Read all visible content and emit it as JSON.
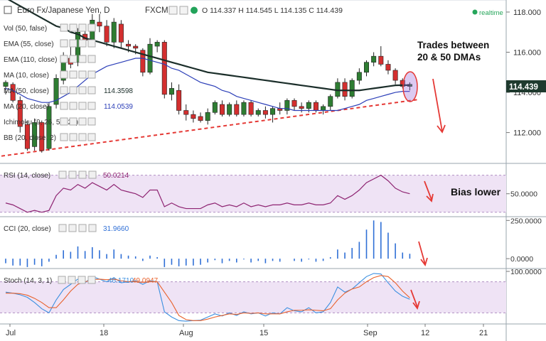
{
  "header": {
    "symbol": "Euro Fx/Japanese Yen, D",
    "source": "FXCM",
    "ohlc": "O 114.337  H 114.545  L 114.135  C 114.439",
    "realtime": "realtime"
  },
  "indicators": [
    {
      "label": "Vol (50, false)",
      "value": ""
    },
    {
      "label": "EMA (55, close)",
      "value": ""
    },
    {
      "label": "EMA (110, close)",
      "value": ""
    },
    {
      "label": "MA (10, close)",
      "value": ""
    },
    {
      "label": "MA (50, close)",
      "value": "114.3598"
    },
    {
      "label": "MA (20, close)",
      "value": "114.0539"
    },
    {
      "label": "Ichimoku (9, 26, 52, 26)",
      "value": ""
    },
    {
      "label": "BB (20, close, 2)",
      "value": ""
    }
  ],
  "annotations": {
    "trades_line1": "Trades between",
    "trades_line2": "20 & 50 DMAs",
    "bias": "Bias lower"
  },
  "panels": {
    "rsi": {
      "label": "RSI (14, close)",
      "value": "50.0214"
    },
    "cci": {
      "label": "CCI (20, close)",
      "value": "31.9660"
    },
    "stoch": {
      "label": "Stoch (14, 3, 1)",
      "value1": "46.1710",
      "value2": "49.0947"
    }
  },
  "colors": {
    "up": "#2e7d32",
    "down": "#d32f2f",
    "ma50": "#1b2e2a",
    "ma20": "#2c3fb8",
    "trend": "#e53935",
    "rsi": "#8e2472",
    "cci": "#2f6fd6",
    "stochK": "#3b8fe0",
    "stochD": "#e8622d",
    "band": "#efe3f5",
    "price_tag": "#1f3a2e"
  },
  "chart_data": [
    {
      "type": "candlestick",
      "title": "Euro Fx/Japanese Yen, D",
      "ylim": [
        110.5,
        118.6
      ],
      "yticks": [
        112.0,
        114.0,
        116.0,
        118.0
      ],
      "ytick_labels": [
        "112.000",
        "114.000",
        "116.000",
        "118.000"
      ],
      "last_price": "114.439",
      "x_tick_labels": [
        "Jul",
        "18",
        "Aug",
        "15",
        "Sep",
        "12",
        "21"
      ],
      "candles": [
        [
          114.3,
          114.6,
          113.9,
          114.5
        ],
        [
          114.4,
          114.5,
          113.5,
          113.6
        ],
        [
          113.6,
          113.8,
          112.0,
          112.3
        ],
        [
          112.4,
          112.6,
          111.1,
          111.2
        ],
        [
          111.3,
          112.7,
          111.1,
          112.5
        ],
        [
          112.5,
          112.6,
          111.0,
          111.1
        ],
        [
          111.2,
          113.5,
          111.1,
          113.3
        ],
        [
          113.4,
          114.9,
          113.2,
          114.7
        ],
        [
          114.6,
          116.0,
          114.4,
          115.8
        ],
        [
          115.7,
          116.5,
          115.2,
          115.4
        ],
        [
          115.5,
          117.2,
          115.3,
          117.0
        ],
        [
          116.9,
          117.4,
          116.4,
          116.6
        ],
        [
          116.6,
          117.9,
          116.4,
          117.6
        ],
        [
          117.5,
          117.9,
          117.0,
          117.3
        ],
        [
          117.3,
          117.6,
          116.3,
          116.5
        ],
        [
          116.5,
          117.7,
          116.2,
          117.5
        ],
        [
          117.4,
          117.6,
          116.2,
          116.5
        ],
        [
          116.4,
          116.6,
          116.0,
          116.3
        ],
        [
          116.3,
          116.4,
          115.9,
          116.2
        ],
        [
          116.1,
          116.2,
          114.8,
          115.0
        ],
        [
          115.0,
          116.7,
          114.9,
          116.4
        ],
        [
          116.3,
          116.6,
          116.0,
          116.5
        ],
        [
          116.5,
          116.6,
          113.7,
          113.9
        ],
        [
          113.9,
          114.5,
          113.6,
          114.2
        ],
        [
          114.1,
          114.4,
          112.9,
          113.1
        ],
        [
          113.1,
          113.4,
          112.6,
          112.9
        ],
        [
          112.9,
          113.1,
          112.5,
          112.7
        ],
        [
          112.8,
          113.0,
          112.5,
          112.6
        ],
        [
          112.6,
          113.2,
          112.4,
          113.0
        ],
        [
          113.0,
          113.6,
          112.9,
          113.5
        ],
        [
          113.4,
          113.6,
          112.8,
          112.9
        ],
        [
          112.9,
          113.5,
          112.8,
          113.4
        ],
        [
          113.4,
          113.6,
          112.8,
          112.9
        ],
        [
          112.9,
          113.6,
          112.8,
          113.5
        ],
        [
          113.5,
          113.6,
          112.8,
          112.9
        ],
        [
          112.9,
          113.2,
          112.8,
          113.1
        ],
        [
          113.1,
          113.3,
          112.7,
          112.9
        ],
        [
          112.9,
          113.3,
          112.5,
          113.2
        ],
        [
          113.2,
          113.5,
          112.9,
          113.1
        ],
        [
          113.1,
          113.7,
          112.9,
          113.6
        ],
        [
          113.6,
          113.7,
          113.1,
          113.3
        ],
        [
          113.3,
          113.5,
          113.0,
          113.2
        ],
        [
          113.2,
          113.6,
          113.0,
          113.5
        ],
        [
          113.5,
          113.6,
          113.0,
          113.1
        ],
        [
          113.1,
          113.4,
          112.9,
          113.3
        ],
        [
          113.3,
          113.9,
          113.1,
          113.8
        ],
        [
          113.8,
          114.7,
          113.7,
          114.5
        ],
        [
          114.5,
          114.7,
          113.6,
          113.8
        ],
        [
          113.8,
          114.7,
          113.7,
          114.6
        ],
        [
          114.6,
          115.2,
          114.4,
          115.0
        ],
        [
          115.0,
          115.6,
          114.8,
          115.5
        ],
        [
          115.5,
          116.0,
          115.3,
          115.8
        ],
        [
          115.8,
          116.3,
          115.3,
          115.4
        ],
        [
          115.4,
          115.6,
          114.9,
          115.1
        ],
        [
          115.1,
          115.2,
          114.4,
          114.6
        ],
        [
          114.6,
          114.7,
          114.2,
          114.3
        ],
        [
          114.3,
          114.5,
          114.1,
          114.4
        ]
      ],
      "series": [
        {
          "name": "MA (50, close)",
          "values": [
            118.7,
            118.5,
            118.3,
            118.1,
            117.9,
            117.7,
            117.5,
            117.3,
            117.2,
            117.0,
            116.9,
            116.7,
            116.6,
            116.5,
            116.4,
            116.3,
            116.2,
            116.1,
            116.0,
            115.9,
            115.8,
            115.7,
            115.6,
            115.5,
            115.4,
            115.3,
            115.2,
            115.1,
            115.0,
            114.95,
            114.9,
            114.85,
            114.8,
            114.75,
            114.7,
            114.65,
            114.6,
            114.55,
            114.5,
            114.45,
            114.4,
            114.35,
            114.3,
            114.25,
            114.2,
            114.15,
            114.1,
            114.1,
            114.1,
            114.1,
            114.15,
            114.2,
            114.25,
            114.3,
            114.35,
            114.36,
            114.36
          ]
        },
        {
          "name": "MA (20, close)",
          "values": [
            114.2,
            114.1,
            113.9,
            113.7,
            113.6,
            113.5,
            113.5,
            113.6,
            113.8,
            114.0,
            114.3,
            114.6,
            114.9,
            115.1,
            115.3,
            115.4,
            115.5,
            115.6,
            115.7,
            115.7,
            115.6,
            115.5,
            115.4,
            115.2,
            115.1,
            114.9,
            114.7,
            114.5,
            114.4,
            114.3,
            114.1,
            114.0,
            113.8,
            113.7,
            113.6,
            113.5,
            113.4,
            113.3,
            113.2,
            113.2,
            113.1,
            113.1,
            113.1,
            113.1,
            113.1,
            113.1,
            113.1,
            113.2,
            113.3,
            113.4,
            113.6,
            113.7,
            113.8,
            113.9,
            114.0,
            114.05,
            114.05
          ]
        }
      ],
      "trendline": {
        "from": [
          0,
          110.9
        ],
        "to": [
          56,
          113.6
        ]
      }
    },
    {
      "type": "line",
      "title": "RSI (14, close)",
      "ylim": [
        38,
        66
      ],
      "yticks": [
        50.0
      ],
      "ytick_labels": [
        "50.0000"
      ],
      "series": [
        {
          "name": "RSI (14, close)",
          "values": [
            45,
            44,
            42,
            40,
            41,
            40,
            41,
            49,
            53,
            52,
            55,
            53,
            56,
            54,
            52,
            55,
            52,
            51,
            50,
            48,
            52,
            52,
            43,
            45,
            43,
            42,
            42,
            42,
            44,
            45,
            43,
            44,
            43,
            45,
            43,
            44,
            43,
            44,
            44,
            45,
            44,
            44,
            45,
            44,
            44,
            45,
            49,
            47,
            49,
            52,
            56,
            58,
            60,
            57,
            53,
            51,
            50.02
          ]
        }
      ]
    },
    {
      "type": "bar",
      "title": "CCI (20, close)",
      "ylim": [
        -60,
        270
      ],
      "yticks": [
        0.0,
        250.0
      ],
      "ytick_labels": [
        "0.0000",
        "250.0000"
      ],
      "values": [
        -30,
        -45,
        -45,
        -55,
        -40,
        -50,
        -20,
        25,
        55,
        45,
        80,
        50,
        75,
        55,
        30,
        60,
        30,
        20,
        15,
        -15,
        20,
        10,
        -55,
        -40,
        -50,
        -45,
        -45,
        -40,
        -25,
        -10,
        -30,
        -15,
        -25,
        -5,
        -25,
        -15,
        -30,
        -15,
        -20,
        0,
        -15,
        -20,
        -5,
        -20,
        -15,
        10,
        60,
        40,
        70,
        110,
        190,
        250,
        240,
        170,
        100,
        40,
        31.97
      ]
    },
    {
      "type": "line",
      "title": "Stoch (14, 3, 1)",
      "ylim": [
        0,
        100
      ],
      "yticks": [
        100.0
      ],
      "ytick_labels": [
        "100.0000"
      ],
      "series": [
        {
          "name": "K",
          "values": [
            60,
            58,
            55,
            50,
            40,
            28,
            20,
            45,
            65,
            75,
            85,
            78,
            90,
            85,
            80,
            88,
            78,
            80,
            82,
            75,
            82,
            80,
            22,
            12,
            5,
            4,
            5,
            6,
            12,
            18,
            14,
            20,
            15,
            22,
            18,
            20,
            14,
            20,
            18,
            30,
            24,
            22,
            30,
            20,
            22,
            40,
            70,
            60,
            66,
            78,
            90,
            96,
            95,
            78,
            62,
            52,
            46.17
          ]
        },
        {
          "name": "D",
          "values": [
            58,
            58,
            57,
            54,
            48,
            40,
            30,
            30,
            45,
            62,
            75,
            80,
            84,
            85,
            84,
            85,
            82,
            80,
            80,
            79,
            80,
            80,
            60,
            40,
            15,
            7,
            5,
            5,
            8,
            12,
            15,
            18,
            17,
            20,
            19,
            20,
            18,
            18,
            18,
            22,
            25,
            25,
            26,
            25,
            24,
            28,
            45,
            58,
            66,
            70,
            80,
            88,
            92,
            90,
            78,
            62,
            49.09
          ]
        }
      ]
    }
  ]
}
